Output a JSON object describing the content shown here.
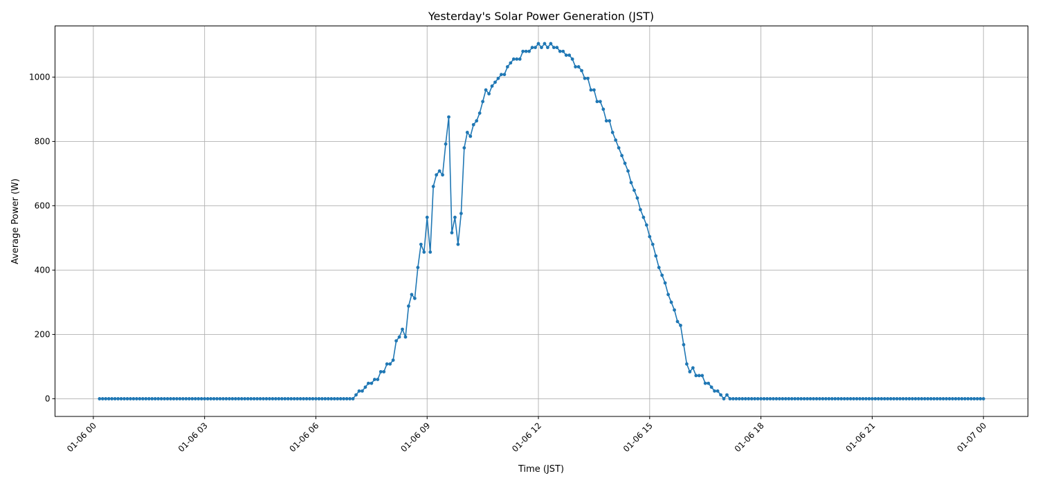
{
  "chart_data": {
    "type": "line",
    "title": "Yesterday's Solar Power Generation (JST)",
    "xlabel": "Time (JST)",
    "ylabel": "Average Power (W)",
    "grid": true,
    "marker": "dot",
    "color": "#1f77b4",
    "xlim": [
      "01-05 22:58",
      "01-07 01:12"
    ],
    "ylim": [
      -55,
      1159
    ],
    "x_ticks": [
      "01-06 00",
      "01-06 03",
      "01-06 06",
      "01-06 09",
      "01-06 12",
      "01-06 15",
      "01-06 18",
      "01-06 21",
      "01-07 00"
    ],
    "y_ticks": [
      "0",
      "200",
      "400",
      "600",
      "800",
      "1000"
    ],
    "y_tick_values": [
      0,
      200,
      400,
      600,
      800,
      1000
    ],
    "x": [
      "01-06 00:10",
      "01-06 00:15",
      "01-06 00:20",
      "01-06 00:25",
      "01-06 00:30",
      "01-06 00:35",
      "01-06 00:40",
      "01-06 00:45",
      "01-06 00:50",
      "01-06 00:55",
      "01-06 01:00",
      "01-06 01:05",
      "01-06 01:10",
      "01-06 01:15",
      "01-06 01:20",
      "01-06 01:25",
      "01-06 01:30",
      "01-06 01:35",
      "01-06 01:40",
      "01-06 01:45",
      "01-06 01:50",
      "01-06 01:55",
      "01-06 02:00",
      "01-06 02:05",
      "01-06 02:10",
      "01-06 02:15",
      "01-06 02:20",
      "01-06 02:25",
      "01-06 02:30",
      "01-06 02:35",
      "01-06 02:40",
      "01-06 02:45",
      "01-06 02:50",
      "01-06 02:55",
      "01-06 03:00",
      "01-06 03:05",
      "01-06 03:10",
      "01-06 03:15",
      "01-06 03:20",
      "01-06 03:25",
      "01-06 03:30",
      "01-06 03:35",
      "01-06 03:40",
      "01-06 03:45",
      "01-06 03:50",
      "01-06 03:55",
      "01-06 04:00",
      "01-06 04:05",
      "01-06 04:10",
      "01-06 04:15",
      "01-06 04:20",
      "01-06 04:25",
      "01-06 04:30",
      "01-06 04:35",
      "01-06 04:40",
      "01-06 04:45",
      "01-06 04:50",
      "01-06 04:55",
      "01-06 05:00",
      "01-06 05:05",
      "01-06 05:10",
      "01-06 05:15",
      "01-06 05:20",
      "01-06 05:25",
      "01-06 05:30",
      "01-06 05:35",
      "01-06 05:40",
      "01-06 05:45",
      "01-06 05:50",
      "01-06 05:55",
      "01-06 06:00",
      "01-06 06:05",
      "01-06 06:10",
      "01-06 06:15",
      "01-06 06:20",
      "01-06 06:25",
      "01-06 06:30",
      "01-06 06:35",
      "01-06 06:40",
      "01-06 06:45",
      "01-06 06:50",
      "01-06 06:55",
      "01-06 07:00",
      "01-06 07:05",
      "01-06 07:10",
      "01-06 07:15",
      "01-06 07:20",
      "01-06 07:25",
      "01-06 07:30",
      "01-06 07:35",
      "01-06 07:40",
      "01-06 07:45",
      "01-06 07:50",
      "01-06 07:55",
      "01-06 08:00",
      "01-06 08:05",
      "01-06 08:10",
      "01-06 08:15",
      "01-06 08:20",
      "01-06 08:25",
      "01-06 08:30",
      "01-06 08:35",
      "01-06 08:40",
      "01-06 08:45",
      "01-06 08:50",
      "01-06 08:55",
      "01-06 09:00",
      "01-06 09:05",
      "01-06 09:10",
      "01-06 09:15",
      "01-06 09:20",
      "01-06 09:25",
      "01-06 09:30",
      "01-06 09:35",
      "01-06 09:40",
      "01-06 09:45",
      "01-06 09:50",
      "01-06 09:55",
      "01-06 10:00",
      "01-06 10:05",
      "01-06 10:10",
      "01-06 10:15",
      "01-06 10:20",
      "01-06 10:25",
      "01-06 10:30",
      "01-06 10:35",
      "01-06 10:40",
      "01-06 10:45",
      "01-06 10:50",
      "01-06 10:55",
      "01-06 11:00",
      "01-06 11:05",
      "01-06 11:10",
      "01-06 11:15",
      "01-06 11:20",
      "01-06 11:25",
      "01-06 11:30",
      "01-06 11:35",
      "01-06 11:40",
      "01-06 11:45",
      "01-06 11:50",
      "01-06 11:55",
      "01-06 12:00",
      "01-06 12:05",
      "01-06 12:10",
      "01-06 12:15",
      "01-06 12:20",
      "01-06 12:25",
      "01-06 12:30",
      "01-06 12:35",
      "01-06 12:40",
      "01-06 12:45",
      "01-06 12:50",
      "01-06 12:55",
      "01-06 13:00",
      "01-06 13:05",
      "01-06 13:10",
      "01-06 13:15",
      "01-06 13:20",
      "01-06 13:25",
      "01-06 13:30",
      "01-06 13:35",
      "01-06 13:40",
      "01-06 13:45",
      "01-06 13:50",
      "01-06 13:55",
      "01-06 14:00",
      "01-06 14:05",
      "01-06 14:10",
      "01-06 14:15",
      "01-06 14:20",
      "01-06 14:25",
      "01-06 14:30",
      "01-06 14:35",
      "01-06 14:40",
      "01-06 14:45",
      "01-06 14:50",
      "01-06 14:55",
      "01-06 15:00",
      "01-06 15:05",
      "01-06 15:10",
      "01-06 15:15",
      "01-06 15:20",
      "01-06 15:25",
      "01-06 15:30",
      "01-06 15:35",
      "01-06 15:40",
      "01-06 15:45",
      "01-06 15:50",
      "01-06 15:55",
      "01-06 16:00",
      "01-06 16:05",
      "01-06 16:10",
      "01-06 16:15",
      "01-06 16:20",
      "01-06 16:25",
      "01-06 16:30",
      "01-06 16:35",
      "01-06 16:40",
      "01-06 16:45",
      "01-06 16:50",
      "01-06 16:55",
      "01-06 17:00",
      "01-06 17:05",
      "01-06 17:10",
      "01-06 17:15",
      "01-06 17:20",
      "01-06 17:25",
      "01-06 17:30",
      "01-06 17:35",
      "01-06 17:40",
      "01-06 17:45",
      "01-06 17:50",
      "01-06 17:55",
      "01-06 18:00",
      "01-06 18:05",
      "01-06 18:10",
      "01-06 18:15",
      "01-06 18:20",
      "01-06 18:25",
      "01-06 18:30",
      "01-06 18:35",
      "01-06 18:40",
      "01-06 18:45",
      "01-06 18:50",
      "01-06 18:55",
      "01-06 19:00",
      "01-06 19:05",
      "01-06 19:10",
      "01-06 19:15",
      "01-06 19:20",
      "01-06 19:25",
      "01-06 19:30",
      "01-06 19:35",
      "01-06 19:40",
      "01-06 19:45",
      "01-06 19:50",
      "01-06 19:55",
      "01-06 20:00",
      "01-06 20:05",
      "01-06 20:10",
      "01-06 20:15",
      "01-06 20:20",
      "01-06 20:25",
      "01-06 20:30",
      "01-06 20:35",
      "01-06 20:40",
      "01-06 20:45",
      "01-06 20:50",
      "01-06 20:55",
      "01-06 21:00",
      "01-06 21:05",
      "01-06 21:10",
      "01-06 21:15",
      "01-06 21:20",
      "01-06 21:25",
      "01-06 21:30",
      "01-06 21:35",
      "01-06 21:40",
      "01-06 21:45",
      "01-06 21:50",
      "01-06 21:55",
      "01-06 22:00",
      "01-06 22:05",
      "01-06 22:10",
      "01-06 22:15",
      "01-06 22:20",
      "01-06 22:25",
      "01-06 22:30",
      "01-06 22:35",
      "01-06 22:40",
      "01-06 22:45",
      "01-06 22:50",
      "01-06 22:55",
      "01-06 23:00",
      "01-06 23:05",
      "01-06 23:10",
      "01-06 23:15",
      "01-06 23:20",
      "01-06 23:25",
      "01-06 23:30",
      "01-06 23:35",
      "01-06 23:40",
      "01-06 23:45",
      "01-06 23:50",
      "01-06 23:55",
      "01-07 00:00"
    ],
    "values": [
      0,
      0,
      0,
      0,
      0,
      0,
      0,
      0,
      0,
      0,
      0,
      0,
      0,
      0,
      0,
      0,
      0,
      0,
      0,
      0,
      0,
      0,
      0,
      0,
      0,
      0,
      0,
      0,
      0,
      0,
      0,
      0,
      0,
      0,
      0,
      0,
      0,
      0,
      0,
      0,
      0,
      0,
      0,
      0,
      0,
      0,
      0,
      0,
      0,
      0,
      0,
      0,
      0,
      0,
      0,
      0,
      0,
      0,
      0,
      0,
      0,
      0,
      0,
      0,
      0,
      0,
      0,
      0,
      0,
      0,
      0,
      0,
      0,
      0,
      0,
      0,
      0,
      0,
      0,
      0,
      0,
      0,
      0,
      12,
      24,
      24,
      36,
      48,
      48,
      60,
      60,
      84,
      84,
      108,
      108,
      120,
      180,
      192,
      216,
      192,
      288,
      324,
      312,
      408,
      480,
      456,
      564,
      456,
      660,
      696,
      708,
      696,
      792,
      876,
      516,
      564,
      480,
      576,
      780,
      828,
      816,
      852,
      864,
      888,
      924,
      960,
      948,
      972,
      984,
      996,
      1008,
      1008,
      1032,
      1044,
      1056,
      1056,
      1056,
      1080,
      1080,
      1080,
      1092,
      1092,
      1104,
      1092,
      1104,
      1092,
      1104,
      1092,
      1092,
      1080,
      1080,
      1068,
      1068,
      1056,
      1032,
      1032,
      1020,
      996,
      996,
      960,
      960,
      924,
      924,
      900,
      864,
      864,
      828,
      804,
      780,
      756,
      732,
      708,
      672,
      648,
      624,
      588,
      564,
      540,
      504,
      480,
      444,
      408,
      384,
      360,
      324,
      300,
      276,
      240,
      228,
      168,
      108,
      84,
      96,
      72,
      72,
      72,
      48,
      48,
      36,
      24,
      24,
      12,
      0,
      12,
      0,
      0,
      0,
      0,
      0,
      0,
      0,
      0,
      0,
      0,
      0,
      0,
      0,
      0,
      0,
      0,
      0,
      0,
      0,
      0,
      0,
      0,
      0,
      0,
      0,
      0,
      0,
      0,
      0,
      0,
      0,
      0,
      0,
      0,
      0,
      0,
      0,
      0,
      0,
      0,
      0,
      0,
      0,
      0,
      0,
      0,
      0,
      0,
      0,
      0,
      0,
      0,
      0,
      0,
      0,
      0,
      0,
      0,
      0,
      0,
      0,
      0,
      0,
      0,
      0,
      0,
      0,
      0,
      0,
      0,
      0,
      0,
      0,
      0,
      0,
      0,
      0,
      0,
      0,
      0,
      0,
      0,
      0
    ]
  }
}
